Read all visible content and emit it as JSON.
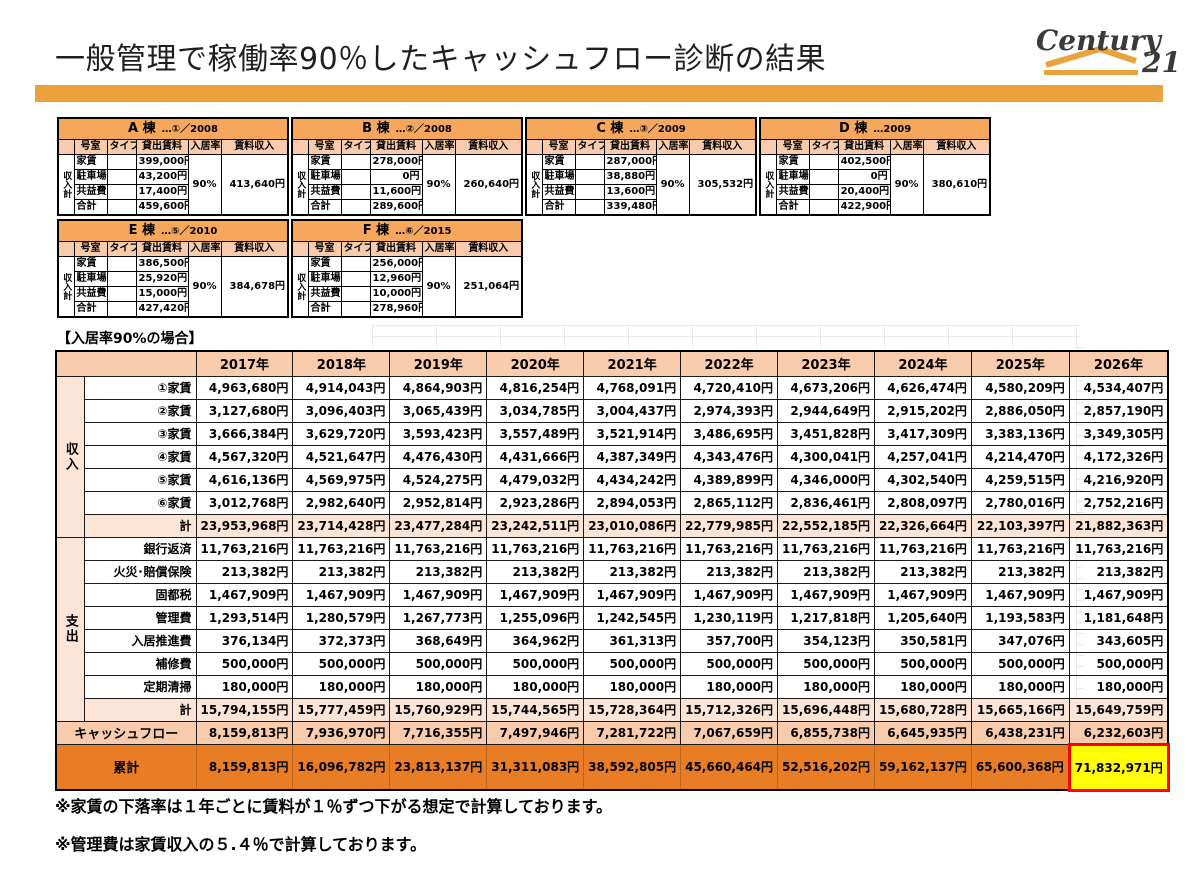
{
  "page": {
    "title": "一般管理で稼働率90％したキャッシュフロー診断の結果",
    "notes": [
      "※家賃の下落率は１年ごとに賃料が１％ずつ下がる想定で計算しております。",
      "※管理費は家賃収入の５.４％で計算しております。"
    ]
  },
  "logo": {
    "brand": "Century",
    "number": "21",
    "gold": "#E8A33D",
    "ink": "#3a3a3a"
  },
  "colors": {
    "accent_bar": "#EDA13C",
    "building_header": "#F6A75B",
    "peach": "#F8CBAD",
    "peach_light": "#FCE4D6",
    "dark_orange": "#E87D26",
    "highlight_yellow": "#FFFF00",
    "highlight_border": "#FF0000"
  },
  "building_tables": {
    "columns": [
      "号室",
      "タイプ",
      "貸出賃料",
      "入居率",
      "賃料収入"
    ],
    "row_group_label": "収入計",
    "row_labels": [
      "家賃",
      "駐車場",
      "共益費",
      "合計"
    ],
    "buildings": [
      {
        "name": "A 棟",
        "tag": "…①／2008",
        "values": [
          "399,000円",
          "43,200円",
          "17,400円",
          "459,600円"
        ],
        "occupancy": "90%",
        "income": "413,640円"
      },
      {
        "name": "B 棟",
        "tag": "…②／2008",
        "values": [
          "278,000円",
          "0円",
          "11,600円",
          "289,600円"
        ],
        "occupancy": "90%",
        "income": "260,640円"
      },
      {
        "name": "C 棟",
        "tag": "…③／2009",
        "values": [
          "287,000円",
          "38,880円",
          "13,600円",
          "339,480円"
        ],
        "occupancy": "90%",
        "income": "305,532円"
      },
      {
        "name": "D 棟",
        "tag": "…2009",
        "values": [
          "402,500円",
          "0円",
          "20,400円",
          "422,900円"
        ],
        "occupancy": "90%",
        "income": "380,610円"
      },
      {
        "name": "E 棟",
        "tag": "…⑤／2010",
        "values": [
          "386,500円",
          "25,920円",
          "15,000円",
          "427,420円"
        ],
        "occupancy": "90%",
        "income": "384,678円"
      },
      {
        "name": "F 棟",
        "tag": "…⑥／2015",
        "values": [
          "256,000円",
          "12,960円",
          "10,000円",
          "278,960円"
        ],
        "occupancy": "90%",
        "income": "251,064円"
      }
    ]
  },
  "main_table": {
    "caption": "【入居率90%の場合】",
    "years": [
      "2017年",
      "2018年",
      "2019年",
      "2020年",
      "2021年",
      "2022年",
      "2023年",
      "2024年",
      "2025年",
      "2026年"
    ],
    "income_group_label": "収入",
    "expense_group_label": "支出",
    "income_rows": [
      {
        "label": "①家賃",
        "values": [
          "4,963,680円",
          "4,914,043円",
          "4,864,903円",
          "4,816,254円",
          "4,768,091円",
          "4,720,410円",
          "4,673,206円",
          "4,626,474円",
          "4,580,209円",
          "4,534,407円"
        ]
      },
      {
        "label": "②家賃",
        "values": [
          "3,127,680円",
          "3,096,403円",
          "3,065,439円",
          "3,034,785円",
          "3,004,437円",
          "2,974,393円",
          "2,944,649円",
          "2,915,202円",
          "2,886,050円",
          "2,857,190円"
        ]
      },
      {
        "label": "③家賃",
        "values": [
          "3,666,384円",
          "3,629,720円",
          "3,593,423円",
          "3,557,489円",
          "3,521,914円",
          "3,486,695円",
          "3,451,828円",
          "3,417,309円",
          "3,383,136円",
          "3,349,305円"
        ]
      },
      {
        "label": "④家賃",
        "values": [
          "4,567,320円",
          "4,521,647円",
          "4,476,430円",
          "4,431,666円",
          "4,387,349円",
          "4,343,476円",
          "4,300,041円",
          "4,257,041円",
          "4,214,470円",
          "4,172,326円"
        ]
      },
      {
        "label": "⑤家賃",
        "values": [
          "4,616,136円",
          "4,569,975円",
          "4,524,275円",
          "4,479,032円",
          "4,434,242円",
          "4,389,899円",
          "4,346,000円",
          "4,302,540円",
          "4,259,515円",
          "4,216,920円"
        ]
      },
      {
        "label": "⑥家賃",
        "values": [
          "3,012,768円",
          "2,982,640円",
          "2,952,814円",
          "2,923,286円",
          "2,894,053円",
          "2,865,112円",
          "2,836,461円",
          "2,808,097円",
          "2,780,016円",
          "2,752,216円"
        ]
      }
    ],
    "income_total": {
      "label": "計",
      "values": [
        "23,953,968円",
        "23,714,428円",
        "23,477,284円",
        "23,242,511円",
        "23,010,086円",
        "22,779,985円",
        "22,552,185円",
        "22,326,664円",
        "22,103,397円",
        "21,882,363円"
      ]
    },
    "expense_rows": [
      {
        "label": "銀行返済",
        "values": [
          "11,763,216円",
          "11,763,216円",
          "11,763,216円",
          "11,763,216円",
          "11,763,216円",
          "11,763,216円",
          "11,763,216円",
          "11,763,216円",
          "11,763,216円",
          "11,763,216円"
        ]
      },
      {
        "label": "火災･賠償保険",
        "values": [
          "213,382円",
          "213,382円",
          "213,382円",
          "213,382円",
          "213,382円",
          "213,382円",
          "213,382円",
          "213,382円",
          "213,382円",
          "213,382円"
        ]
      },
      {
        "label": "固都税",
        "values": [
          "1,467,909円",
          "1,467,909円",
          "1,467,909円",
          "1,467,909円",
          "1,467,909円",
          "1,467,909円",
          "1,467,909円",
          "1,467,909円",
          "1,467,909円",
          "1,467,909円"
        ]
      },
      {
        "label": "管理費",
        "values": [
          "1,293,514円",
          "1,280,579円",
          "1,267,773円",
          "1,255,096円",
          "1,242,545円",
          "1,230,119円",
          "1,217,818円",
          "1,205,640円",
          "1,193,583円",
          "1,181,648円"
        ]
      },
      {
        "label": "入居推進費",
        "values": [
          "376,134円",
          "372,373円",
          "368,649円",
          "364,962円",
          "361,313円",
          "357,700円",
          "354,123円",
          "350,581円",
          "347,076円",
          "343,605円"
        ]
      },
      {
        "label": "補修費",
        "values": [
          "500,000円",
          "500,000円",
          "500,000円",
          "500,000円",
          "500,000円",
          "500,000円",
          "500,000円",
          "500,000円",
          "500,000円",
          "500,000円"
        ]
      },
      {
        "label": "定期清掃",
        "values": [
          "180,000円",
          "180,000円",
          "180,000円",
          "180,000円",
          "180,000円",
          "180,000円",
          "180,000円",
          "180,000円",
          "180,000円",
          "180,000円"
        ]
      }
    ],
    "expense_total": {
      "label": "計",
      "values": [
        "15,794,155円",
        "15,777,459円",
        "15,760,929円",
        "15,744,565円",
        "15,728,364円",
        "15,712,326円",
        "15,696,448円",
        "15,680,728円",
        "15,665,166円",
        "15,649,759円"
      ]
    },
    "cashflow": {
      "label": "キャッシュフロー",
      "values": [
        "8,159,813円",
        "7,936,970円",
        "7,716,355円",
        "7,497,946円",
        "7,281,722円",
        "7,067,659円",
        "6,855,738円",
        "6,645,935円",
        "6,438,231円",
        "6,232,603円"
      ]
    },
    "cumulative": {
      "label": "累計",
      "values": [
        "8,159,813円",
        "16,096,782円",
        "23,813,137円",
        "31,311,083円",
        "38,592,805円",
        "45,660,464円",
        "52,516,202円",
        "59,162,137円",
        "65,600,368円",
        "71,832,971円"
      ],
      "highlight_last": true
    }
  }
}
